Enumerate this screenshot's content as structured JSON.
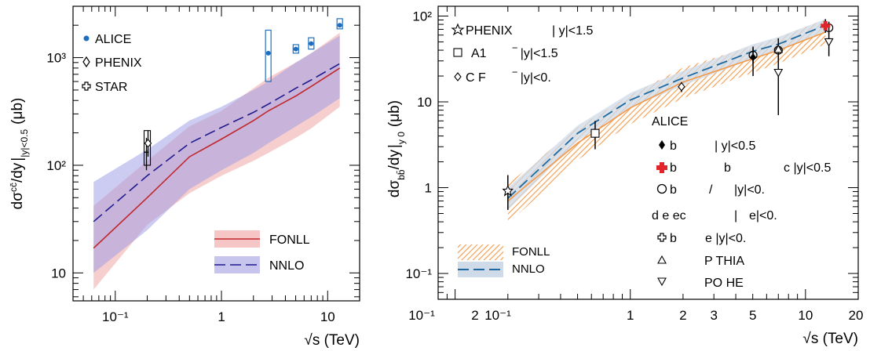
{
  "colors": {
    "fonll_left_band": "#f6c6c6",
    "fonll_left_line": "#c0272d",
    "nnlo_left_band": "#9a9ae6",
    "nnlo_left_line": "#1f1b8f",
    "alice_left": "#1f6fc0",
    "fonll_right_band": "#f39a4a",
    "fonll_right_line": "#f39a4a",
    "nnlo_right_band": "#cfdbe8",
    "nnlo_right_line": "#1e6aa0",
    "alice_red": "#e0242a"
  },
  "left_panel": {
    "ylabel_main": "dσ",
    "ylabel_sup": "cc̄",
    "ylabel_mid": "/dy",
    "ylabel_sub": "|y|<0.5",
    "ylabel_unit": "(μb)",
    "xlabel": "√s (TeV)",
    "yticks": [
      "10",
      "10²",
      "10³"
    ],
    "xticks": [
      "10⁻¹",
      "1",
      "10"
    ],
    "legend_markers": [
      "ALICE",
      "PHENIX",
      "STAR"
    ],
    "legend_bands": [
      "FONLL",
      "NNLO"
    ]
  },
  "right_panel": {
    "ylabel_main": "dσ",
    "ylabel_sub1": "bb̄",
    "ylabel_mid": "/dy",
    "ylabel_sub2": "y 0",
    "ylabel_unit": "(μb)",
    "xlabel": "√s (TeV)",
    "yticks": [
      "10⁻¹",
      "1",
      "10",
      "10²"
    ],
    "xticks": [
      "10⁻¹",
      "2",
      "10⁻¹",
      "1",
      "2",
      "3",
      "5",
      "10",
      "20"
    ],
    "legend_top": [
      {
        "name": "PHENIX",
        "cond": "| y|<1.5"
      },
      {
        "name": "A1",
        "cond": "‾ |y|<1.5"
      },
      {
        "name": "C F",
        "cond": "‾ |y|<0."
      }
    ],
    "alice_title": "ALICE",
    "legend_alice": [
      {
        "a": "b",
        "b": "| y|<0.5"
      },
      {
        "a": "b",
        "b": "b",
        "c": "c |y|<0.5"
      },
      {
        "a": "b",
        "b": "/",
        "c": "|y|<0."
      }
    ],
    "legend_d": {
      "a": "d e ec",
      "b": "|",
      "c": "e|<0."
    },
    "legend_star": {
      "a": "b",
      "b": "e |y|<0."
    },
    "legend_pythia": "P THIA",
    "legend_powheg": "PO HE",
    "legend_bands": [
      "FONLL",
      "NNLO"
    ]
  },
  "chart_data": [
    {
      "type": "line",
      "panel": "left",
      "xlabel": "√s (TeV)",
      "ylabel": "dσcc̄/dy||y|<0.5 (μb)",
      "xscale": "log",
      "yscale": "log",
      "xlim": [
        0.04,
        20
      ],
      "ylim": [
        5.5,
        3000
      ],
      "legend": "top-left and bottom-right",
      "series": [
        {
          "name": "FONLL",
          "x": [
            0.0625,
            0.2,
            0.5,
            1.0,
            2.0,
            2.76,
            5.02,
            7,
            13
          ],
          "y": [
            17,
            50,
            120,
            175,
            260,
            320,
            440,
            540,
            800
          ],
          "y_low": [
            7,
            28,
            55,
            80,
            110,
            130,
            180,
            220,
            350
          ],
          "y_high": [
            42,
            110,
            230,
            320,
            520,
            650,
            900,
            1100,
            1700
          ]
        },
        {
          "name": "NNLO",
          "x": [
            0.0625,
            0.2,
            0.5,
            1.0,
            2.0,
            2.76,
            5.02,
            7,
            13
          ],
          "y": [
            30,
            80,
            160,
            225,
            310,
            370,
            520,
            620,
            880
          ],
          "y_low": [
            10,
            25,
            60,
            90,
            130,
            160,
            230,
            280,
            420
          ],
          "y_high": [
            70,
            140,
            260,
            350,
            500,
            600,
            900,
            1100,
            1600
          ]
        },
        {
          "name": "ALICE",
          "x": [
            2.76,
            5.02,
            7,
            13
          ],
          "y": [
            1100,
            1200,
            1350,
            2000
          ],
          "syst_low": [
            600,
            1100,
            1200,
            1850
          ],
          "syst_high": [
            1800,
            1320,
            1530,
            2300
          ]
        },
        {
          "name": "PHENIX",
          "x": [
            0.2
          ],
          "y": [
            160
          ],
          "err_low": [
            120
          ],
          "err_high": [
            210
          ]
        },
        {
          "name": "STAR",
          "x": [
            0.2
          ],
          "y": [
            130
          ],
          "err_low": [
            90
          ],
          "err_high": [
            180
          ]
        }
      ]
    },
    {
      "type": "line",
      "panel": "right",
      "xlabel": "√s (TeV)",
      "ylabel": "dσbb̄/dy (μb)",
      "xscale": "log",
      "yscale": "log",
      "xlim": [
        0.08,
        20
      ],
      "ylim": [
        0.05,
        130
      ],
      "legend": "top-left, right and bottom-left",
      "series": [
        {
          "name": "FONLL",
          "x": [
            0.2,
            0.5,
            1.0,
            2.0,
            5.02,
            7,
            13
          ],
          "y": [
            0.7,
            3.3,
            8.5,
            17,
            32,
            40,
            65
          ],
          "y_low": [
            0.38,
            2.1,
            5.5,
            11,
            22,
            28,
            47
          ],
          "y_high": [
            1.1,
            5.0,
            12,
            25,
            45,
            56,
            92
          ]
        },
        {
          "name": "NNLO",
          "x": [
            0.2,
            0.5,
            1.0,
            2.0,
            5.02,
            7,
            13
          ],
          "y": [
            0.75,
            4.3,
            10.5,
            19,
            39,
            47,
            78
          ],
          "y_low": [
            0.55,
            3.5,
            8.5,
            15.5,
            32,
            39,
            66
          ],
          "y_high": [
            1.0,
            5.3,
            12.7,
            23,
            47,
            57,
            92
          ]
        },
        {
          "name": "PHENIX",
          "x": [
            0.2
          ],
          "y": [
            0.92
          ],
          "err_low": [
            0.55
          ],
          "err_high": [
            1.4
          ]
        },
        {
          "name": "A1",
          "x": [
            0.63
          ],
          "y": [
            4.3
          ],
          "err_low": [
            2.8
          ],
          "err_high": [
            6.0
          ]
        },
        {
          "name": "C F",
          "x": [
            1.96
          ],
          "y": [
            15
          ],
          "err_low": [
            13
          ],
          "err_high": [
            17
          ]
        },
        {
          "name": "ALICE b",
          "x": [
            5.02,
            7
          ],
          "y": [
            33,
            41
          ],
          "err_low": [
            20,
            25
          ],
          "err_high": [
            44,
            55
          ]
        },
        {
          "name": "ALICE b (red)",
          "x": [
            13
          ],
          "y": [
            77
          ],
          "err_low": [
            64
          ],
          "err_high": [
            92
          ]
        },
        {
          "name": "ALICE b (open)",
          "x": [
            5.02,
            7,
            13.6
          ],
          "y": [
            35,
            40,
            73
          ],
          "err_low": [
            28,
            32,
            62
          ],
          "err_high": [
            42,
            50,
            86
          ]
        },
        {
          "name": "PYTHIA",
          "x": [
            7
          ],
          "y": [
            41
          ]
        },
        {
          "name": "POWHEG",
          "x": [
            7,
            13.6
          ],
          "y": [
            22,
            50
          ],
          "err_low": [
            7,
            34
          ],
          "err_high": [
            45,
            64
          ]
        }
      ]
    }
  ]
}
